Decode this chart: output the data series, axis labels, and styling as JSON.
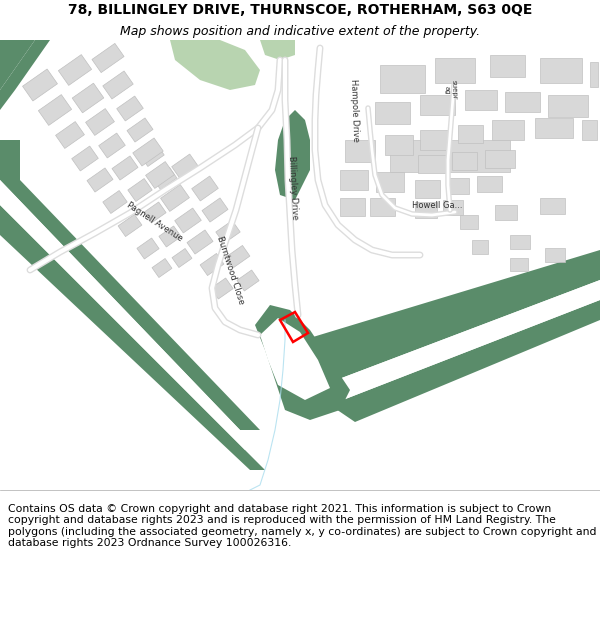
{
  "title_line1": "78, BILLINGLEY DRIVE, THURNSCOE, ROTHERHAM, S63 0QE",
  "title_line2": "Map shows position and indicative extent of the property.",
  "footer_text": "Contains OS data © Crown copyright and database right 2021. This information is subject to Crown copyright and database rights 2023 and is reproduced with the permission of HM Land Registry. The polygons (including the associated geometry, namely x, y co-ordinates) are subject to Crown copyright and database rights 2023 Ordnance Survey 100026316.",
  "background_color": "#ffffff",
  "map_bg": "#ffffff",
  "green_dark": "#5a8c6a",
  "green_light": "#b8d4b0",
  "building_color": "#d8d8d8",
  "building_edge": "#c0c0c0",
  "plot_edge": "#ff0000",
  "title_fontsize": 10,
  "subtitle_fontsize": 9,
  "footer_fontsize": 7.8
}
